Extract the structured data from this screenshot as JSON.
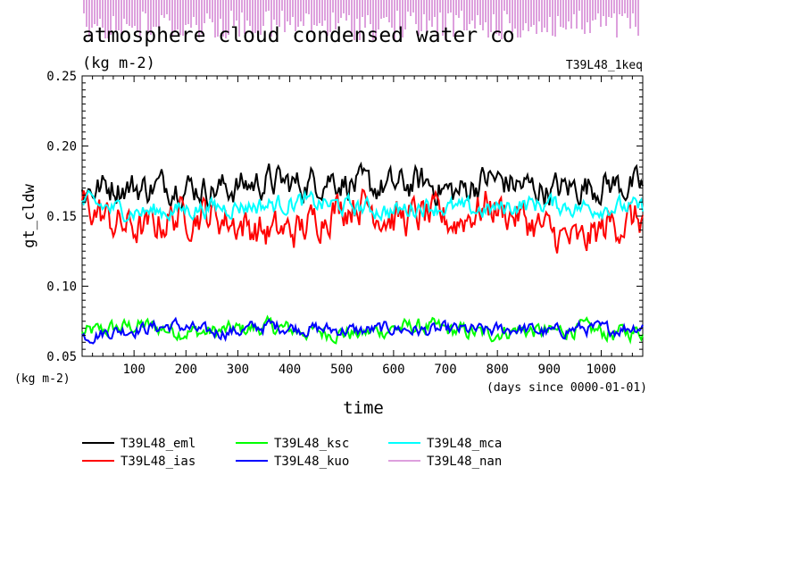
{
  "chart_data": {
    "type": "line",
    "title": "atmosphere cloud condensed water co",
    "units_label": "(kg m-2)",
    "run_label": "T39L48_1keq",
    "xlabel": "time",
    "x_unit_label": "(days since 0000-01-01)",
    "ylabel": "gt_cldw",
    "y_unit_label": "(kg m-2)",
    "xlim": [
      0,
      1080
    ],
    "ylim": [
      0.05,
      0.25
    ],
    "x_ticks": [
      100,
      200,
      300,
      400,
      500,
      600,
      700,
      800,
      900,
      1000
    ],
    "y_ticks": [
      "0.05",
      "0.10",
      "0.15",
      "0.20",
      "0.25"
    ],
    "grid": false,
    "legend_placement": "bottom",
    "series": [
      {
        "name": "T39L48_eml",
        "color": "#000000",
        "mean": 0.17,
        "amp": 0.012,
        "x": [
          0,
          60,
          120,
          180,
          240,
          300,
          360,
          420,
          480,
          540,
          600,
          660,
          720,
          780,
          840,
          900,
          960,
          1020,
          1080
        ],
        "values": [
          0.168,
          0.172,
          0.17,
          0.173,
          0.169,
          0.171,
          0.175,
          0.172,
          0.178,
          0.17,
          0.171,
          0.174,
          0.166,
          0.177,
          0.172,
          0.168,
          0.171,
          0.173,
          0.17
        ]
      },
      {
        "name": "T39L48_ias",
        "color": "#ff0000",
        "mean": 0.148,
        "amp": 0.014,
        "x": [
          0,
          60,
          120,
          180,
          240,
          300,
          360,
          420,
          480,
          540,
          600,
          660,
          720,
          780,
          840,
          900,
          960,
          1020,
          1080
        ],
        "values": [
          0.16,
          0.145,
          0.14,
          0.15,
          0.152,
          0.145,
          0.138,
          0.14,
          0.155,
          0.16,
          0.148,
          0.15,
          0.146,
          0.158,
          0.15,
          0.138,
          0.13,
          0.145,
          0.148
        ]
      },
      {
        "name": "T39L48_ksc",
        "color": "#00ff00",
        "mean": 0.069,
        "amp": 0.006,
        "x": [
          0,
          60,
          120,
          180,
          240,
          300,
          360,
          420,
          480,
          540,
          600,
          660,
          720,
          780,
          840,
          900,
          960,
          1020,
          1080
        ],
        "values": [
          0.066,
          0.07,
          0.072,
          0.068,
          0.067,
          0.069,
          0.071,
          0.068,
          0.067,
          0.066,
          0.07,
          0.071,
          0.068,
          0.066,
          0.069,
          0.067,
          0.07,
          0.066,
          0.068
        ]
      },
      {
        "name": "T39L48_kuo",
        "color": "#0000ff",
        "mean": 0.068,
        "amp": 0.005,
        "x": [
          0,
          60,
          120,
          180,
          240,
          300,
          360,
          420,
          480,
          540,
          600,
          660,
          720,
          780,
          840,
          900,
          960,
          1020,
          1080
        ],
        "values": [
          0.064,
          0.068,
          0.07,
          0.072,
          0.067,
          0.068,
          0.072,
          0.07,
          0.069,
          0.068,
          0.07,
          0.068,
          0.069,
          0.068,
          0.07,
          0.067,
          0.07,
          0.069,
          0.072
        ]
      },
      {
        "name": "T39L48_mca",
        "color": "#00ffff",
        "mean": 0.156,
        "amp": 0.007,
        "x": [
          0,
          60,
          120,
          180,
          240,
          300,
          360,
          420,
          480,
          540,
          600,
          660,
          720,
          780,
          840,
          900,
          960,
          1020,
          1080
        ],
        "values": [
          0.16,
          0.155,
          0.153,
          0.154,
          0.156,
          0.157,
          0.158,
          0.16,
          0.158,
          0.156,
          0.153,
          0.158,
          0.155,
          0.154,
          0.158,
          0.159,
          0.156,
          0.157,
          0.155
        ]
      },
      {
        "name": "T39L48_nan",
        "color": "#dda0dd",
        "mean": null,
        "amp": null,
        "x": [],
        "values": []
      }
    ]
  }
}
